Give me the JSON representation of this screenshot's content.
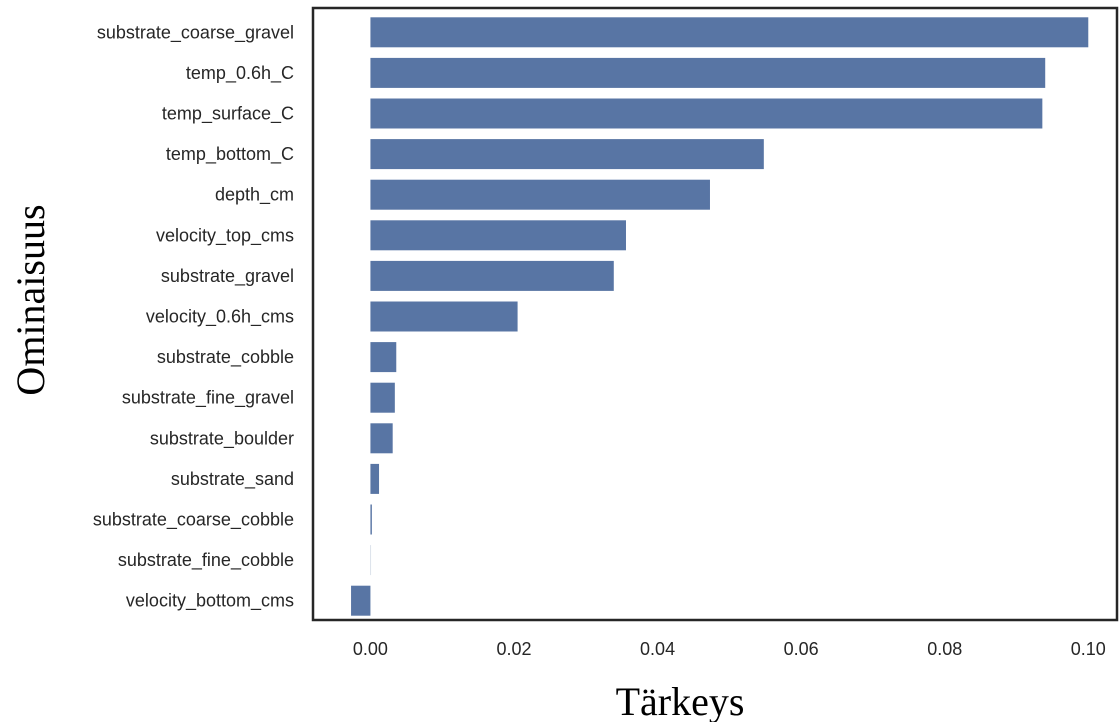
{
  "chart_data": {
    "type": "bar",
    "orientation": "horizontal",
    "title": "",
    "xlabel": "Tärkeys",
    "ylabel": "Ominaisuus",
    "xlim": [
      -0.008,
      0.104
    ],
    "xticks": [
      0.0,
      0.02,
      0.04,
      0.06,
      0.08,
      0.1
    ],
    "xtick_labels": [
      "0.00",
      "0.02",
      "0.04",
      "0.06",
      "0.08",
      "0.10"
    ],
    "grid": false,
    "legend": "none",
    "bar_color": "#5875a4",
    "categories": [
      "substrate_coarse_gravel",
      "temp_0.6h_C",
      "temp_surface_C",
      "temp_bottom_C",
      "depth_cm",
      "velocity_top_cms",
      "substrate_gravel",
      "velocity_0.6h_cms",
      "substrate_cobble",
      "substrate_fine_gravel",
      "substrate_boulder",
      "substrate_sand",
      "substrate_coarse_cobble",
      "substrate_fine_cobble",
      "velocity_bottom_cms"
    ],
    "values": [
      0.1,
      0.094,
      0.0936,
      0.0548,
      0.0473,
      0.0356,
      0.0339,
      0.0205,
      0.0036,
      0.0034,
      0.0031,
      0.0012,
      0.0002,
      0.0,
      -0.0027
    ]
  }
}
